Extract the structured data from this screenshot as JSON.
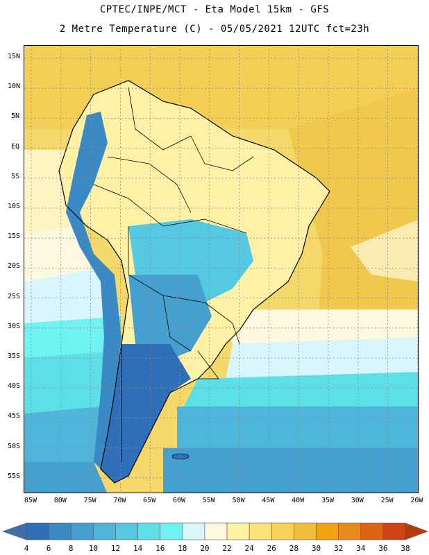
{
  "header": {
    "line1": "CPTEC/INPE/MCT -  Eta Model 15km - GFS",
    "line2": "2 Metre Temperature (C) - 05/05/2021 12UTC fct=23h"
  },
  "map": {
    "region": "South America",
    "variable": "2 Metre Temperature",
    "units": "C",
    "lat_ticks": [
      "15N",
      "10N",
      "5N",
      "EQ",
      "5S",
      "10S",
      "15S",
      "20S",
      "25S",
      "30S",
      "35S",
      "40S",
      "45S",
      "50S",
      "55S"
    ],
    "lon_ticks": [
      "85W",
      "80W",
      "75W",
      "70W",
      "65W",
      "60W",
      "55W",
      "50W",
      "45W",
      "40W",
      "35W",
      "30W",
      "25W",
      "20W"
    ],
    "grid": true
  },
  "colorbar": {
    "labels": [
      "4",
      "6",
      "8",
      "10",
      "12",
      "14",
      "16",
      "18",
      "20",
      "22",
      "24",
      "26",
      "28",
      "30",
      "32",
      "34",
      "36",
      "38"
    ],
    "colors": [
      "#3e6fa8",
      "#2f6fb8",
      "#3a88c4",
      "#45a0d0",
      "#4fb6db",
      "#55c8e2",
      "#5ddfe8",
      "#6ff2f2",
      "#d8f6fb",
      "#fff8e0",
      "#fff2a0",
      "#fde27a",
      "#f7d257",
      "#efbf3a",
      "#f2a20c",
      "#ea8a1c",
      "#e06314",
      "#cf4412",
      "#b83a10"
    ]
  }
}
